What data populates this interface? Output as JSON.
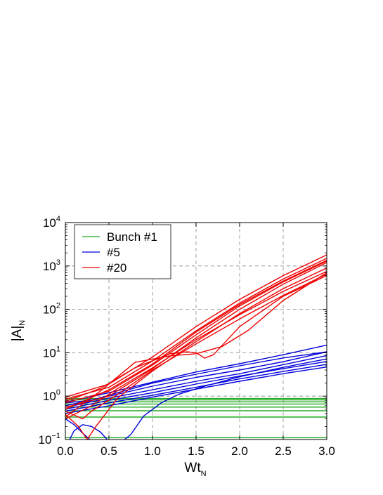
{
  "chart_data": {
    "type": "line",
    "xlabel": "Wt",
    "xlabel_sub": "N",
    "ylabel": "|A|",
    "ylabel_sub": "N",
    "xlim": [
      0.0,
      3.0
    ],
    "ylim": [
      0.1,
      10000
    ],
    "y_scale": "log",
    "grid": true,
    "x_ticks": [
      "0.0",
      "0.5",
      "1.0",
      "1.5",
      "2.0",
      "2.5",
      "3.0"
    ],
    "y_ticks": [
      {
        "base": "10",
        "exp": "−1"
      },
      {
        "base": "10",
        "exp": "0"
      },
      {
        "base": "10",
        "exp": "1"
      },
      {
        "base": "10",
        "exp": "2"
      },
      {
        "base": "10",
        "exp": "3"
      },
      {
        "base": "10",
        "exp": "4"
      }
    ],
    "legend_position": "top-left",
    "legend": [
      {
        "label": "Bunch #1",
        "color": "#22aa22"
      },
      {
        "label": "#5",
        "color": "#0000dd"
      },
      {
        "label": "#20",
        "color": "#ee0000"
      }
    ],
    "groups": [
      {
        "label": "Bunch #1",
        "color": "#22aa22",
        "curves": [
          [
            [
              0,
              0.88
            ],
            [
              3,
              0.88
            ]
          ],
          [
            [
              0,
              0.82
            ],
            [
              3,
              0.82
            ]
          ],
          [
            [
              0,
              0.74
            ],
            [
              3,
              0.74
            ]
          ],
          [
            [
              0,
              0.66
            ],
            [
              3,
              0.66
            ]
          ],
          [
            [
              0,
              0.56
            ],
            [
              3,
              0.56
            ]
          ],
          [
            [
              0,
              0.46
            ],
            [
              3,
              0.46
            ]
          ],
          [
            [
              0,
              0.33
            ],
            [
              3,
              0.33
            ]
          ],
          [
            [
              0,
              0.11
            ],
            [
              3,
              0.11
            ]
          ]
        ]
      },
      {
        "label": "#5",
        "color": "#0000dd",
        "curves": [
          [
            [
              0,
              0.72
            ],
            [
              0.5,
              1.2
            ],
            [
              1.0,
              2.1
            ],
            [
              1.5,
              3.6
            ],
            [
              2.0,
              5.6
            ],
            [
              2.5,
              9.0
            ],
            [
              3.0,
              15.0
            ]
          ],
          [
            [
              0,
              0.6
            ],
            [
              0.5,
              1.0
            ],
            [
              1.0,
              1.7
            ],
            [
              1.5,
              2.7
            ],
            [
              2.0,
              4.0
            ],
            [
              2.5,
              6.2
            ],
            [
              3.0,
              10.5
            ]
          ],
          [
            [
              0,
              0.55
            ],
            [
              0.5,
              0.9
            ],
            [
              1.0,
              1.4
            ],
            [
              1.5,
              2.2
            ],
            [
              2.0,
              3.3
            ],
            [
              2.5,
              5.3
            ],
            [
              3.0,
              8.6
            ]
          ],
          [
            [
              0,
              0.5
            ],
            [
              0.5,
              0.8
            ],
            [
              1.0,
              1.2
            ],
            [
              1.5,
              1.9
            ],
            [
              2.0,
              2.9
            ],
            [
              2.5,
              4.3
            ],
            [
              3.0,
              6.3
            ]
          ],
          [
            [
              0,
              0.45
            ],
            [
              0.5,
              0.7
            ],
            [
              1.0,
              1.05
            ],
            [
              1.5,
              1.6
            ],
            [
              2.0,
              2.5
            ],
            [
              2.5,
              3.7
            ],
            [
              3.0,
              5.4
            ]
          ],
          [
            [
              0,
              0.4
            ],
            [
              0.5,
              0.6
            ],
            [
              1.0,
              0.95
            ],
            [
              1.5,
              1.45
            ],
            [
              2.0,
              2.2
            ],
            [
              2.5,
              3.3
            ],
            [
              3.0,
              4.7
            ]
          ],
          [
            [
              0,
              0.3
            ],
            [
              0.1,
              0.22
            ],
            [
              0.2,
              0.14
            ],
            [
              0.28,
              0.1
            ]
          ],
          [
            [
              0.05,
              0.1
            ],
            [
              0.1,
              0.16
            ],
            [
              0.2,
              0.22
            ],
            [
              0.3,
              0.2
            ],
            [
              0.4,
              0.15
            ],
            [
              0.48,
              0.1
            ]
          ],
          [
            [
              0.68,
              0.1
            ],
            [
              0.75,
              0.13
            ],
            [
              0.9,
              0.35
            ],
            [
              1.1,
              0.7
            ],
            [
              1.3,
              1.1
            ],
            [
              1.6,
              1.7
            ],
            [
              2.0,
              2.8
            ],
            [
              2.5,
              4.6
            ],
            [
              3.0,
              7.2
            ]
          ],
          [
            [
              0,
              0.7
            ],
            [
              0.3,
              0.8
            ],
            [
              0.6,
              1.2
            ],
            [
              1.0,
              2.0
            ],
            [
              1.5,
              3.2
            ],
            [
              2.0,
              5.0
            ],
            [
              2.5,
              7.6
            ],
            [
              3.0,
              10.5
            ]
          ]
        ]
      },
      {
        "label": "#20",
        "color": "#ee0000",
        "curves": [
          [
            [
              0,
              0.95
            ],
            [
              0.5,
              1.9
            ],
            [
              1.0,
              8.0
            ],
            [
              1.5,
              40
            ],
            [
              2.0,
              170
            ],
            [
              2.5,
              600
            ],
            [
              3.0,
              1800
            ]
          ],
          [
            [
              0,
              0.85
            ],
            [
              0.5,
              1.6
            ],
            [
              1.0,
              6.5
            ],
            [
              1.5,
              32
            ],
            [
              2.0,
              140
            ],
            [
              2.5,
              500
            ],
            [
              3.0,
              1500
            ]
          ],
          [
            [
              0,
              0.7
            ],
            [
              0.5,
              1.3
            ],
            [
              1.0,
              5.2
            ],
            [
              1.5,
              26
            ],
            [
              2.0,
              120
            ],
            [
              2.5,
              430
            ],
            [
              3.0,
              1300
            ]
          ],
          [
            [
              0,
              0.55
            ],
            [
              0.5,
              1.0
            ],
            [
              1.0,
              4.3
            ],
            [
              1.5,
              22
            ],
            [
              2.0,
              100
            ],
            [
              2.5,
              380
            ],
            [
              3.0,
              1200
            ]
          ],
          [
            [
              0,
              0.3
            ],
            [
              0.3,
              0.6
            ],
            [
              0.6,
              1.5
            ],
            [
              1.0,
              4.5
            ],
            [
              1.5,
              20
            ],
            [
              2.0,
              75
            ],
            [
              2.5,
              260
            ],
            [
              3.0,
              750
            ]
          ],
          [
            [
              0,
              0.75
            ],
            [
              0.4,
              1.5
            ],
            [
              0.8,
              4.5
            ],
            [
              1.2,
              9.5
            ],
            [
              1.4,
              10.5
            ],
            [
              1.5,
              10
            ],
            [
              1.6,
              7.5
            ],
            [
              1.7,
              9.0
            ],
            [
              2.0,
              40
            ],
            [
              2.5,
              200
            ],
            [
              3.0,
              600
            ]
          ],
          [
            [
              0,
              0.45
            ],
            [
              0.2,
              0.3
            ],
            [
              0.3,
              0.45
            ],
            [
              0.6,
              1.1
            ],
            [
              1.0,
              4.0
            ],
            [
              1.5,
              16
            ],
            [
              2.0,
              60
            ],
            [
              2.5,
              210
            ],
            [
              3.0,
              650
            ]
          ],
          [
            [
              0,
              0.38
            ],
            [
              0.15,
              0.2
            ],
            [
              0.25,
              0.1
            ],
            [
              0.35,
              0.2
            ],
            [
              0.6,
              0.9
            ],
            [
              1.0,
              3.8
            ],
            [
              1.5,
              18
            ],
            [
              2.0,
              80
            ],
            [
              2.5,
              300
            ],
            [
              3.0,
              900
            ]
          ],
          [
            [
              0,
              0.33
            ],
            [
              0.4,
              1.3
            ],
            [
              0.8,
              6.0
            ],
            [
              1.2,
              8.5
            ],
            [
              1.5,
              9.5
            ],
            [
              1.8,
              14
            ],
            [
              2.1,
              33
            ],
            [
              2.5,
              160
            ],
            [
              3.0,
              700
            ]
          ],
          [
            [
              0,
              0.5
            ],
            [
              0.5,
              1.4
            ],
            [
              1.0,
              5.5
            ],
            [
              1.5,
              30
            ],
            [
              2.0,
              130
            ],
            [
              2.5,
              450
            ],
            [
              3.0,
              1350
            ]
          ]
        ]
      }
    ]
  }
}
